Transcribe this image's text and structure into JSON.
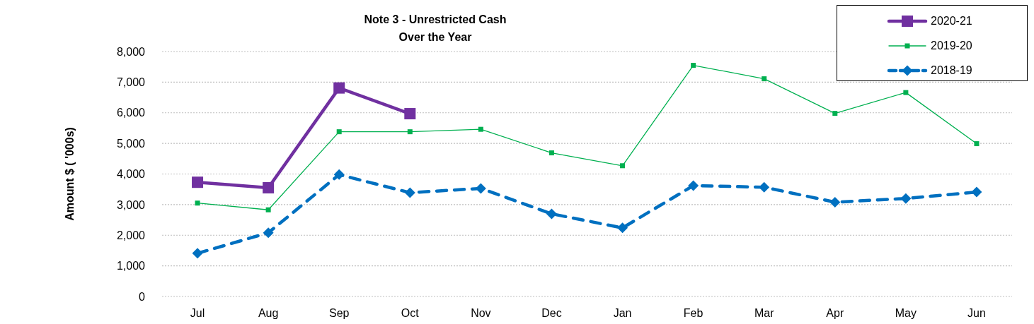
{
  "chart_data": {
    "type": "line",
    "title": "Note 3 - Unrestricted Cash",
    "subtitle": "Over the Year",
    "ylabel": "Amount $ ( '000s)",
    "categories": [
      "Jul",
      "Aug",
      "Sep",
      "Oct",
      "Nov",
      "Dec",
      "Jan",
      "Feb",
      "Mar",
      "Apr",
      "May",
      "Jun"
    ],
    "series": [
      {
        "name": "2020-21",
        "color": "#7030a0",
        "marker": "square",
        "line_style": "solid",
        "values": [
          3730,
          3550,
          6810,
          5970,
          null,
          null,
          null,
          null,
          null,
          null,
          null,
          null
        ]
      },
      {
        "name": "2019-20",
        "color": "#00b050",
        "marker": "square",
        "line_style": "solid",
        "values": [
          3050,
          2830,
          5380,
          5380,
          5460,
          4690,
          4270,
          7550,
          7110,
          5980,
          6660,
          4990
        ]
      },
      {
        "name": "2018-19",
        "color": "#0070c0",
        "marker": "diamond",
        "line_style": "dashed",
        "values": [
          1410,
          2080,
          3980,
          3390,
          3530,
          2700,
          2240,
          3620,
          3570,
          3080,
          3200,
          3410
        ]
      }
    ],
    "ylim": [
      0,
      8000
    ],
    "yticks": [
      {
        "value": 0,
        "label": "0"
      },
      {
        "value": 1000,
        "label": "1,000"
      },
      {
        "value": 2000,
        "label": "2,000"
      },
      {
        "value": 3000,
        "label": "3,000"
      },
      {
        "value": 4000,
        "label": "4,000"
      },
      {
        "value": 5000,
        "label": "5,000"
      },
      {
        "value": 6000,
        "label": "6,000"
      },
      {
        "value": 7000,
        "label": "7,000"
      },
      {
        "value": 8000,
        "label": "8,000"
      }
    ],
    "grid": "y",
    "legend": "top right"
  }
}
